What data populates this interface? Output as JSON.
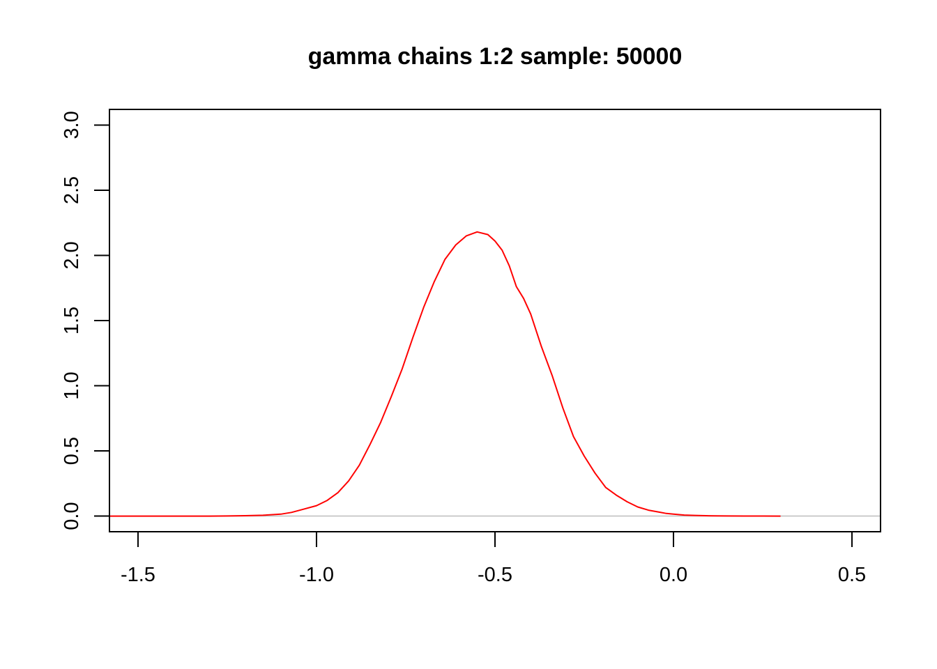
{
  "chart_data": {
    "type": "line",
    "title": "gamma chains 1:2 sample: 50000",
    "xlabel": "",
    "ylabel": "",
    "xlim": [
      -1.58,
      0.58
    ],
    "ylim": [
      -0.12,
      3.12
    ],
    "x_ticks": [
      -1.5,
      -1.0,
      -0.5,
      0.0,
      0.5
    ],
    "x_tick_labels": [
      "-1.5",
      "-1.0",
      "-0.5",
      "0.0",
      "0.5"
    ],
    "y_ticks": [
      0.0,
      0.5,
      1.0,
      1.5,
      2.0,
      2.5,
      3.0
    ],
    "y_tick_labels": [
      "0.0",
      "0.5",
      "1.0",
      "1.5",
      "2.0",
      "2.5",
      "3.0"
    ],
    "grid": false,
    "baseline": {
      "y": 0,
      "color": "#bebebe"
    },
    "series": [
      {
        "color": "#ff0000",
        "x": [
          -1.58,
          -1.4,
          -1.3,
          -1.25,
          -1.2,
          -1.15,
          -1.1,
          -1.07,
          -1.04,
          -1.0,
          -0.97,
          -0.94,
          -0.91,
          -0.88,
          -0.85,
          -0.82,
          -0.79,
          -0.76,
          -0.73,
          -0.7,
          -0.67,
          -0.64,
          -0.61,
          -0.58,
          -0.55,
          -0.52,
          -0.5,
          -0.48,
          -0.46,
          -0.44,
          -0.42,
          -0.4,
          -0.37,
          -0.34,
          -0.31,
          -0.28,
          -0.25,
          -0.22,
          -0.19,
          -0.16,
          -0.13,
          -0.1,
          -0.07,
          -0.04,
          -0.02,
          0.0,
          0.03,
          0.06,
          0.09,
          0.12,
          0.15,
          0.2,
          0.25,
          0.3
        ],
        "y": [
          0.0,
          0.0,
          0.0,
          0.001,
          0.003,
          0.006,
          0.015,
          0.028,
          0.05,
          0.08,
          0.12,
          0.18,
          0.27,
          0.39,
          0.55,
          0.72,
          0.92,
          1.13,
          1.37,
          1.6,
          1.8,
          1.97,
          2.08,
          2.15,
          2.18,
          2.16,
          2.11,
          2.04,
          1.92,
          1.76,
          1.67,
          1.55,
          1.3,
          1.08,
          0.83,
          0.61,
          0.46,
          0.33,
          0.22,
          0.16,
          0.11,
          0.07,
          0.045,
          0.03,
          0.02,
          0.015,
          0.008,
          0.005,
          0.003,
          0.0015,
          0.001,
          0.0005,
          0.0002,
          0.0
        ]
      }
    ]
  }
}
